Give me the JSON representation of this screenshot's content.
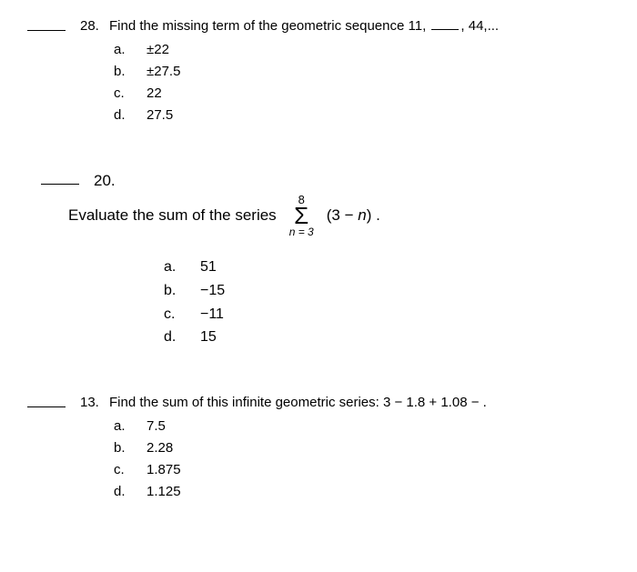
{
  "q28": {
    "number": "28.",
    "text_before": "Find the missing term of the geometric sequence 11,",
    "text_after": ", 44,...",
    "options": {
      "a": {
        "label": "a.",
        "value": "±22"
      },
      "b": {
        "label": "b.",
        "value": "±27.5"
      },
      "c": {
        "label": "c.",
        "value": "22"
      },
      "d": {
        "label": "d.",
        "value": "27.5"
      }
    }
  },
  "q20": {
    "number": "20.",
    "prompt": "Evaluate the sum of the series",
    "sigma_upper": "8",
    "sigma_lower_var": "n",
    "sigma_lower_eq": " = 3",
    "summand_open": "(3 − ",
    "summand_var": "n",
    "summand_close": ") .",
    "options": {
      "a": {
        "label": "a.",
        "value": "51"
      },
      "b": {
        "label": "b.",
        "value": "−15"
      },
      "c": {
        "label": "c.",
        "value": "−11"
      },
      "d": {
        "label": "d.",
        "value": "15"
      }
    }
  },
  "q13": {
    "number": "13.",
    "text": "Find the sum of this infinite geometric series: 3 − 1.8 + 1.08 − .",
    "options": {
      "a": {
        "label": "a.",
        "value": "7.5"
      },
      "b": {
        "label": "b.",
        "value": "2.28"
      },
      "c": {
        "label": "c.",
        "value": "1.875"
      },
      "d": {
        "label": "d.",
        "value": "1.125"
      }
    }
  }
}
